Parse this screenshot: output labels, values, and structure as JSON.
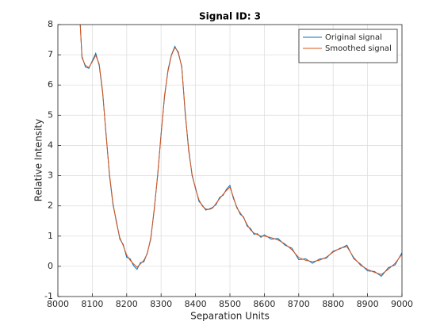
{
  "chart_data": {
    "type": "line",
    "title": "Signal ID: 3",
    "x_label": "Separation Units",
    "y_label": "Relative Intensity",
    "x": [
      8065,
      8070,
      8080,
      8090,
      8100,
      8110,
      8120,
      8130,
      8140,
      8150,
      8160,
      8170,
      8180,
      8190,
      8200,
      8210,
      8220,
      8230,
      8240,
      8250,
      8260,
      8270,
      8280,
      8290,
      8300,
      8310,
      8320,
      8330,
      8340,
      8350,
      8360,
      8370,
      8380,
      8390,
      8400,
      8410,
      8420,
      8430,
      8440,
      8450,
      8460,
      8470,
      8480,
      8490,
      8500,
      8510,
      8520,
      8530,
      8540,
      8550,
      8560,
      8570,
      8580,
      8590,
      8600,
      8620,
      8640,
      8660,
      8680,
      8700,
      8720,
      8740,
      8760,
      8780,
      8800,
      8820,
      8840,
      8860,
      8880,
      8900,
      8920,
      8940,
      8960,
      8980,
      9000
    ],
    "series": [
      {
        "name": "Original signal",
        "color": "#0072bd",
        "values": [
          8.0,
          6.95,
          6.6,
          6.55,
          6.8,
          7.05,
          6.65,
          5.75,
          4.4,
          3.0,
          2.05,
          1.5,
          0.9,
          0.72,
          0.3,
          0.25,
          0.02,
          -0.1,
          0.12,
          0.15,
          0.45,
          0.9,
          1.9,
          3.0,
          4.4,
          5.6,
          6.5,
          7.0,
          7.28,
          7.05,
          6.62,
          5.05,
          3.9,
          3.0,
          2.6,
          2.15,
          2.02,
          1.86,
          1.9,
          1.95,
          2.05,
          2.28,
          2.35,
          2.55,
          2.68,
          2.25,
          1.97,
          1.72,
          1.63,
          1.33,
          1.25,
          1.06,
          1.08,
          0.96,
          1.04,
          0.9,
          0.92,
          0.7,
          0.6,
          0.22,
          0.25,
          0.1,
          0.24,
          0.27,
          0.5,
          0.58,
          0.7,
          0.25,
          0.07,
          -0.15,
          -0.17,
          -0.33,
          -0.05,
          0.05,
          0.45
        ]
      },
      {
        "name": "Smoothed signal",
        "color": "#d95319",
        "values": [
          8.0,
          6.9,
          6.65,
          6.58,
          6.77,
          6.98,
          6.7,
          5.8,
          4.35,
          3.05,
          2.1,
          1.45,
          0.95,
          0.68,
          0.37,
          0.2,
          0.08,
          -0.03,
          0.08,
          0.2,
          0.42,
          0.95,
          1.85,
          3.05,
          4.35,
          5.67,
          6.45,
          6.98,
          7.24,
          7.1,
          6.58,
          5.13,
          3.82,
          3.05,
          2.56,
          2.2,
          1.99,
          1.9,
          1.88,
          1.93,
          2.09,
          2.24,
          2.38,
          2.51,
          2.62,
          2.3,
          1.93,
          1.77,
          1.6,
          1.38,
          1.2,
          1.1,
          1.05,
          1.0,
          1.0,
          0.95,
          0.87,
          0.74,
          0.55,
          0.29,
          0.2,
          0.15,
          0.2,
          0.3,
          0.47,
          0.6,
          0.65,
          0.29,
          0.03,
          -0.1,
          -0.2,
          -0.27,
          -0.1,
          0.1,
          0.4
        ]
      }
    ],
    "xlim": [
      8000,
      9000
    ],
    "xticks": [
      8000,
      8100,
      8200,
      8300,
      8400,
      8500,
      8600,
      8700,
      8800,
      8900,
      9000
    ],
    "ylim": [
      -1,
      8
    ],
    "yticks": [
      -1,
      0,
      1,
      2,
      3,
      4,
      5,
      6,
      7,
      8
    ],
    "grid": true,
    "legend": "northeast"
  }
}
